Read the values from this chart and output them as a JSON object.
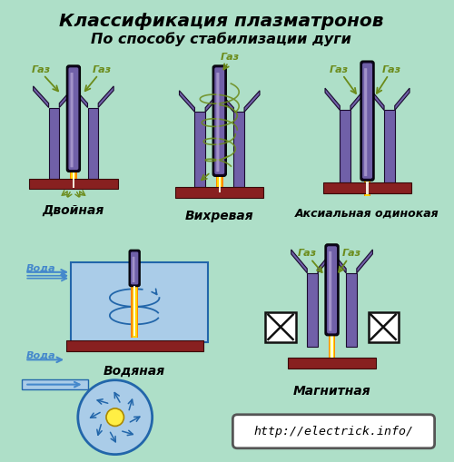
{
  "title_line1": "Классификация плазматронов",
  "title_line2": "По способу стабилизации дуги",
  "bg_color": "#aedfc8",
  "electrode_outer": "#1a0a2e",
  "electrode_purple": "#7060a8",
  "electrode_mid": "#9080c0",
  "electrode_light": "#b8a8d8",
  "flame_yellow": "#ffd700",
  "flame_white": "#fffff0",
  "flame_orange": "#ff8800",
  "plate_color": "#882020",
  "gas_color": "#6b8b1a",
  "water_color": "#4488cc",
  "water_bg": "#aacce8",
  "water_dark": "#2266aa",
  "label_dvojnaya": "Двойная",
  "label_vikhrevaya": "Вихревая",
  "label_aksial": "Аксиальная одинокая",
  "label_vodyanaya": "Водяная",
  "label_magnitnaya": "Магнитная",
  "label_gaz": "Газ",
  "label_voda": "Вода",
  "url": "http://electrick.info/"
}
